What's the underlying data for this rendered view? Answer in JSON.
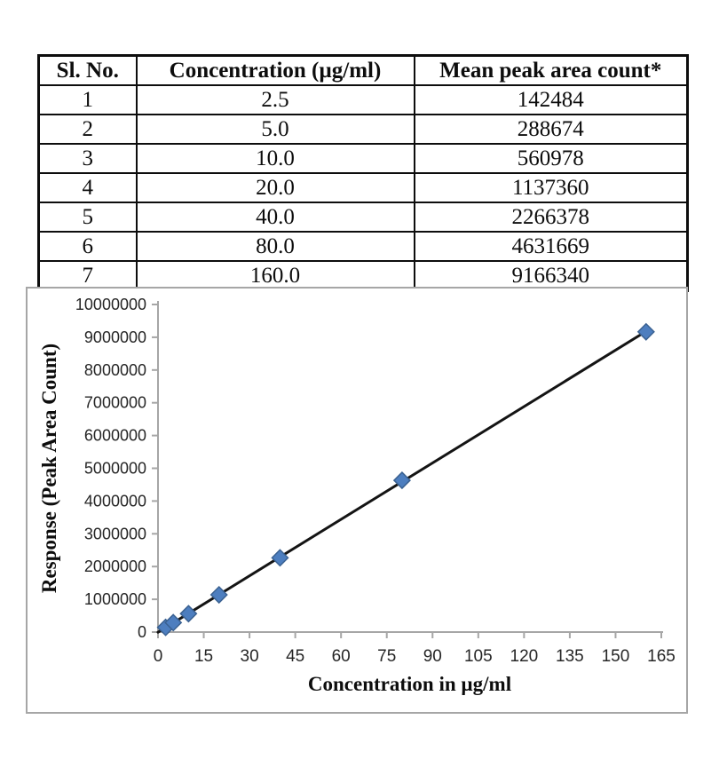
{
  "table": {
    "headers": [
      "Sl. No.",
      "Concentration (µg/ml)",
      "Mean peak area count*"
    ],
    "rows": [
      [
        "1",
        "2.5",
        "142484"
      ],
      [
        "2",
        "5.0",
        "288674"
      ],
      [
        "3",
        "10.0",
        "560978"
      ],
      [
        "4",
        "20.0",
        "1137360"
      ],
      [
        "5",
        "40.0",
        "2266378"
      ],
      [
        "6",
        "80.0",
        "4631669"
      ],
      [
        "7",
        "160.0",
        "9166340"
      ]
    ]
  },
  "chart_data": {
    "type": "scatter",
    "x": [
      2.5,
      5,
      10,
      20,
      40,
      80,
      160
    ],
    "y": [
      142484,
      288674,
      560978,
      1137360,
      2266378,
      4631669,
      9166340
    ],
    "trendline": true,
    "title": "",
    "xlabel": "Concentration in µg/ml",
    "ylabel": "Response (Peak Area Count)",
    "xlim": [
      0,
      165
    ],
    "ylim": [
      0,
      10000000
    ],
    "x_ticks": [
      0,
      15,
      30,
      45,
      60,
      75,
      90,
      105,
      120,
      135,
      150,
      165
    ],
    "y_ticks": [
      0,
      1000000,
      2000000,
      3000000,
      4000000,
      5000000,
      6000000,
      7000000,
      8000000,
      9000000,
      10000000
    ],
    "grid": false,
    "legend": "none",
    "marker_shape": "diamond",
    "marker_color": "#4d7ebf",
    "marker_stroke": "#3a6191",
    "trendline_color": "#141414",
    "axis_color": "#a6a6a6",
    "tick_label_color": "#262626",
    "axis_title_color": "#0d0d0d"
  }
}
